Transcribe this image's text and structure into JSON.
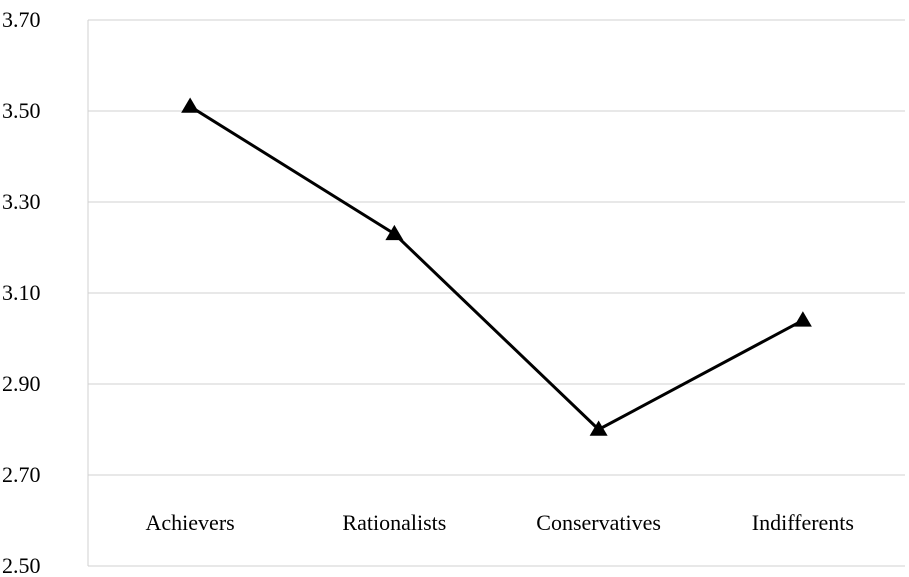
{
  "chart_data": {
    "type": "line",
    "categories": [
      "Achievers",
      "Rationalists",
      "Conservatives",
      "Indifferents"
    ],
    "series": [
      {
        "values": [
          3.51,
          3.23,
          2.8,
          3.04
        ],
        "marker": "triangle",
        "color": "#000000"
      }
    ],
    "yticks": [
      "2.50",
      "2.70",
      "2.90",
      "3.10",
      "3.30",
      "3.50",
      "3.70"
    ],
    "ylim": [
      2.5,
      3.7
    ],
    "grid": true,
    "legend": "none",
    "gridline_color": "#d0d0d0"
  }
}
